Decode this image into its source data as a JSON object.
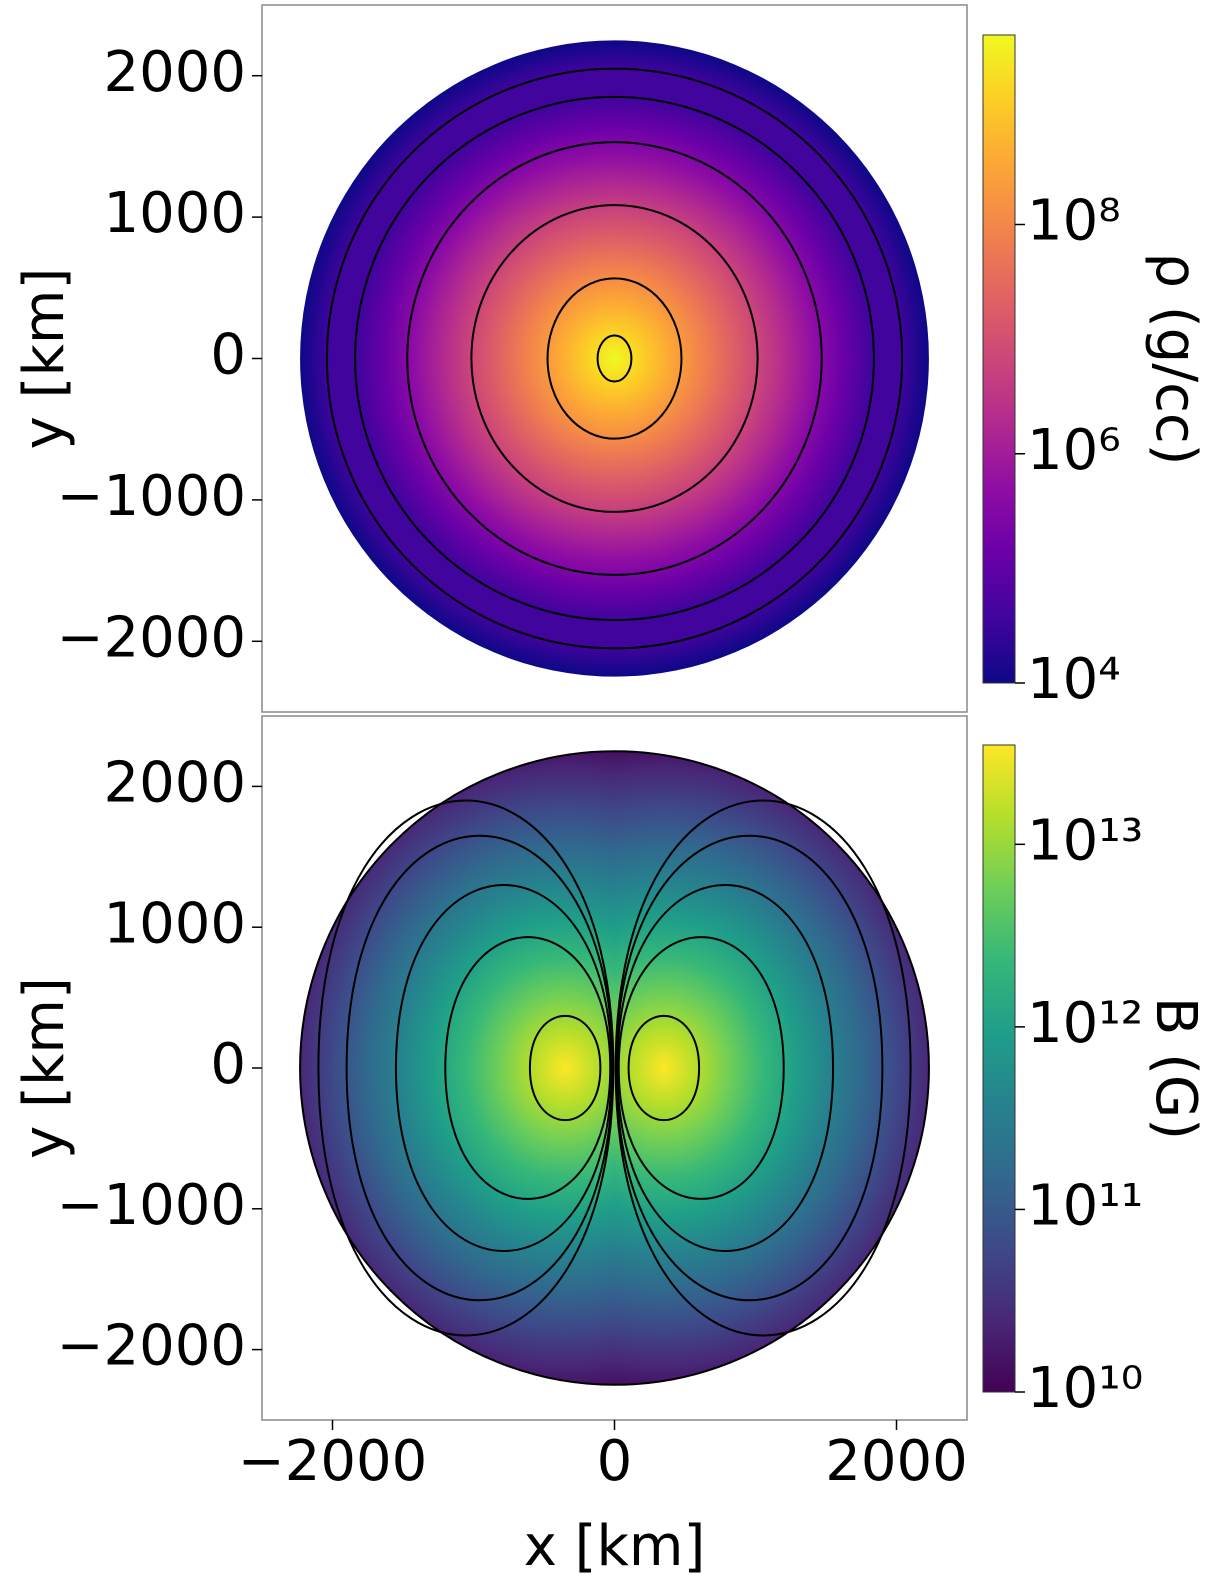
{
  "chart_data": [
    {
      "type": "heatmap",
      "colormap": "plasma",
      "ylabel": "y [km]",
      "colorbar_label": "ρ (g/cc)",
      "xlim": [
        -2500,
        2500
      ],
      "ylim": [
        -2500,
        2500
      ],
      "yticks": [
        {
          "value": -2000,
          "label": "−2000"
        },
        {
          "value": -1000,
          "label": "−1000"
        },
        0,
        1000,
        2000
      ],
      "clim": [
        10000,
        4500000000
      ],
      "log_color": true,
      "cticks": [
        {
          "value": 10000,
          "label": "10⁴"
        },
        {
          "value": 1000000,
          "label": "10⁶"
        },
        {
          "value": 100000000,
          "label": "10⁸"
        }
      ],
      "disk": [
        2230,
        2250
      ],
      "contours": [
        [
          120,
          163
        ],
        [
          475,
          567
        ],
        [
          1015,
          1085
        ],
        [
          1470,
          1530
        ],
        [
          1840,
          1850
        ],
        [
          2040,
          2050
        ]
      ]
    },
    {
      "type": "dipole",
      "colormap": "viridis",
      "ylabel": "y [km]",
      "xlabel": "x [km]",
      "colorbar_label": "B (G)",
      "xlim": [
        -2500,
        2500
      ],
      "ylim": [
        -2500,
        2500
      ],
      "xticks": [
        {
          "value": -2000,
          "label": "−2000"
        },
        0,
        2000
      ],
      "yticks": [
        {
          "value": -2000,
          "label": "−2000"
        },
        {
          "value": -1000,
          "label": "−1000"
        },
        0,
        1000,
        2000
      ],
      "clim": [
        10000000000,
        35000000000000
      ],
      "log_color": true,
      "cticks": [
        {
          "value": 10000000000,
          "label": "10¹⁰"
        },
        {
          "value": 100000000000,
          "label": "10¹¹"
        },
        {
          "value": 1000000000000,
          "label": "10¹²"
        },
        {
          "value": 10000000000000,
          "label": "10¹³"
        }
      ],
      "disk": [
        2230,
        2250
      ],
      "contours": [
        [
          100,
          600,
          370
        ],
        [
          30,
          1200,
          930
        ],
        [
          20,
          1550,
          1300
        ],
        [
          12,
          1900,
          1650
        ],
        [
          8,
          2100,
          1900
        ]
      ]
    }
  ]
}
